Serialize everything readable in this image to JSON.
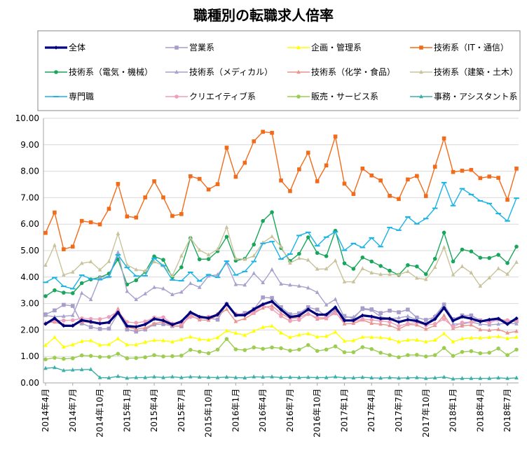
{
  "chart_data": {
    "type": "line",
    "title": "職種別の転職求人倍率",
    "ylim": [
      0,
      10
    ],
    "yticks": [
      "0.00",
      "1.00",
      "2.00",
      "3.00",
      "4.00",
      "5.00",
      "6.00",
      "7.00",
      "8.00",
      "9.00",
      "10.00"
    ],
    "grid": "horizontal",
    "legend_position": "top",
    "x": [
      "2014年4月",
      "2014年5月",
      "2014年6月",
      "2014年7月",
      "2014年8月",
      "2014年9月",
      "2014年10月",
      "2014年11月",
      "2014年12月",
      "2015年1月",
      "2015年2月",
      "2015年3月",
      "2015年4月",
      "2015年5月",
      "2015年6月",
      "2015年7月",
      "2015年8月",
      "2015年9月",
      "2015年10月",
      "2015年11月",
      "2015年12月",
      "2016年1月",
      "2016年2月",
      "2016年3月",
      "2016年4月",
      "2016年5月",
      "2016年6月",
      "2016年7月",
      "2016年8月",
      "2016年9月",
      "2016年10月",
      "2016年11月",
      "2016年12月",
      "2017年1月",
      "2017年2月",
      "2017年3月",
      "2017年4月",
      "2017年5月",
      "2017年6月",
      "2017年7月",
      "2017年8月",
      "2017年9月",
      "2017年10月",
      "2017年11月",
      "2017年12月",
      "2018年1月",
      "2018年2月",
      "2018年3月",
      "2018年4月",
      "2018年5月",
      "2018年6月",
      "2018年7月",
      "2018年8月"
    ],
    "xtick_labels": [
      "2014年4月",
      "2014年7月",
      "2014年10月",
      "2015年1月",
      "2015年4月",
      "2015年7月",
      "2015年10月",
      "2016年1月",
      "2016年4月",
      "2016年7月",
      "2016年10月",
      "2017年1月",
      "2017年4月",
      "2017年7月",
      "2017年10月",
      "2018年1月",
      "2018年4月",
      "2018年7月"
    ],
    "series": [
      {
        "name": "全体",
        "color": "#00007f",
        "marker": "diamond",
        "values": [
          2.23,
          2.44,
          2.16,
          2.16,
          2.37,
          2.31,
          2.24,
          2.29,
          2.67,
          2.15,
          2.12,
          2.21,
          2.42,
          2.36,
          2.2,
          2.32,
          2.67,
          2.5,
          2.45,
          2.58,
          2.99,
          2.56,
          2.56,
          2.78,
          2.97,
          3.08,
          2.77,
          2.49,
          2.54,
          2.78,
          2.58,
          2.58,
          2.86,
          2.36,
          2.36,
          2.55,
          2.51,
          2.43,
          2.43,
          2.3,
          2.39,
          2.34,
          2.22,
          2.41,
          2.84,
          2.35,
          2.5,
          2.43,
          2.32,
          2.39,
          2.43,
          2.22,
          2.44
        ]
      },
      {
        "name": "営業系",
        "color": "#a89ccb",
        "marker": "square",
        "values": [
          2.59,
          2.74,
          2.95,
          2.91,
          2.25,
          2.11,
          2.04,
          2.05,
          2.63,
          2.02,
          1.94,
          2.02,
          2.21,
          2.22,
          2.15,
          2.14,
          2.62,
          2.46,
          2.45,
          2.39,
          2.98,
          2.56,
          2.64,
          2.79,
          3.23,
          3.21,
          2.86,
          2.59,
          2.63,
          2.86,
          2.77,
          2.51,
          2.74,
          2.53,
          2.43,
          2.82,
          2.78,
          2.64,
          2.73,
          2.67,
          2.77,
          2.47,
          2.38,
          2.49,
          2.96,
          2.41,
          2.55,
          2.55,
          2.36,
          2.35,
          2.4,
          2.32,
          2.33
        ]
      },
      {
        "name": "企画・管理系",
        "color": "#ffff00",
        "marker": "triangle",
        "values": [
          1.42,
          1.72,
          1.36,
          1.44,
          1.57,
          1.6,
          1.43,
          1.45,
          1.67,
          1.44,
          1.44,
          1.54,
          1.61,
          1.6,
          1.55,
          1.64,
          1.74,
          1.65,
          1.62,
          1.71,
          1.97,
          1.88,
          1.8,
          1.96,
          2.1,
          2.15,
          1.89,
          1.72,
          1.81,
          1.86,
          1.74,
          1.76,
          1.92,
          1.58,
          1.6,
          1.73,
          1.72,
          1.71,
          1.67,
          1.55,
          1.62,
          1.62,
          1.55,
          1.62,
          1.86,
          1.55,
          1.67,
          1.7,
          1.7,
          1.72,
          1.75,
          1.68,
          1.73
        ]
      },
      {
        "name": "技術系（IT・通信）",
        "color": "#f26b1a",
        "marker": "square",
        "values": [
          5.67,
          6.44,
          5.05,
          5.15,
          6.12,
          6.07,
          5.99,
          6.58,
          7.52,
          6.29,
          6.25,
          7.01,
          7.62,
          7.01,
          6.31,
          6.38,
          7.81,
          7.71,
          7.31,
          7.51,
          8.89,
          7.79,
          8.32,
          9.13,
          9.49,
          9.45,
          7.65,
          7.25,
          8.07,
          8.7,
          7.62,
          8.22,
          9.31,
          7.53,
          7.14,
          8.1,
          7.84,
          7.65,
          7.07,
          6.95,
          7.69,
          7.82,
          7.06,
          8.17,
          9.24,
          7.97,
          8.02,
          8.05,
          7.74,
          7.8,
          7.75,
          6.92,
          8.1
        ]
      },
      {
        "name": "技術系（電気・機械）",
        "color": "#19a65b",
        "marker": "circle",
        "values": [
          3.28,
          3.5,
          3.41,
          3.39,
          3.77,
          3.91,
          3.99,
          4.13,
          4.67,
          3.72,
          3.88,
          4.2,
          4.78,
          4.65,
          3.99,
          4.37,
          5.47,
          4.67,
          4.68,
          4.98,
          5.52,
          4.62,
          4.69,
          5.23,
          6.12,
          6.45,
          5.1,
          4.61,
          4.88,
          5.5,
          4.91,
          4.79,
          5.75,
          4.52,
          4.31,
          4.74,
          4.59,
          4.42,
          4.24,
          4.08,
          4.45,
          4.4,
          4.11,
          4.69,
          5.68,
          4.59,
          5.04,
          4.97,
          4.73,
          4.72,
          4.84,
          4.53,
          5.15
        ]
      },
      {
        "name": "技術系（メディカル）",
        "color": "#a6a2cc",
        "marker": "triangle",
        "values": [
          2.55,
          2.5,
          2.52,
          2.55,
          3.39,
          3.15,
          3.99,
          4.02,
          4.93,
          3.46,
          3.15,
          3.37,
          3.61,
          3.56,
          3.34,
          3.43,
          3.76,
          3.61,
          4.04,
          4.09,
          4.53,
          3.72,
          3.7,
          4.14,
          3.79,
          4.28,
          3.74,
          3.7,
          3.66,
          3.59,
          3.42,
          2.95,
          3.16,
          2.48,
          2.49,
          2.78,
          2.75,
          2.5,
          2.43,
          2.46,
          2.52,
          2.38,
          2.2,
          2.53,
          2.97,
          2.23,
          2.22,
          2.3,
          2.22,
          2.19,
          2.22,
          2.26,
          2.23
        ]
      },
      {
        "name": "技術系（化学・食品）",
        "color": "#e8938c",
        "marker": "triangle",
        "values": [
          2.27,
          2.3,
          2.19,
          2.17,
          2.31,
          2.29,
          2.29,
          2.28,
          2.8,
          2.11,
          2.03,
          2.08,
          2.24,
          2.31,
          2.15,
          2.15,
          2.56,
          2.38,
          2.37,
          2.55,
          2.78,
          2.32,
          2.43,
          2.63,
          2.83,
          2.92,
          2.63,
          2.43,
          2.47,
          2.63,
          2.41,
          2.43,
          2.69,
          2.23,
          2.25,
          2.38,
          2.25,
          2.22,
          2.17,
          2.03,
          2.21,
          2.19,
          2.03,
          2.17,
          2.55,
          2.06,
          2.15,
          2.19,
          2.01,
          1.99,
          2.02,
          1.89,
          1.95
        ]
      },
      {
        "name": "技術系（建築・土木）",
        "color": "#c8c39a",
        "marker": "triangle",
        "values": [
          4.45,
          5.2,
          4.08,
          4.19,
          4.52,
          4.58,
          4.27,
          4.59,
          5.64,
          4.46,
          4.28,
          4.23,
          4.58,
          4.43,
          4.05,
          4.8,
          5.47,
          5.02,
          4.84,
          5.05,
          5.88,
          4.7,
          4.67,
          4.8,
          5.3,
          5.53,
          5.15,
          4.53,
          4.71,
          4.64,
          4.3,
          4.31,
          4.62,
          3.82,
          3.82,
          4.32,
          4.16,
          4.1,
          4.1,
          4.09,
          4.21,
          3.96,
          3.91,
          4.37,
          5.12,
          4.09,
          4.4,
          4.16,
          3.66,
          3.97,
          4.32,
          4.11,
          4.56
        ]
      },
      {
        "name": "専門職",
        "color": "#1ab3e6",
        "marker": "dash",
        "values": [
          3.8,
          3.98,
          3.65,
          3.56,
          4.07,
          3.93,
          3.9,
          4.01,
          4.84,
          4.36,
          4.04,
          4.05,
          4.71,
          4.43,
          3.89,
          3.86,
          4.18,
          3.85,
          4.09,
          3.99,
          4.6,
          4.08,
          4.21,
          4.59,
          5.27,
          5.34,
          4.68,
          4.87,
          5.57,
          5.69,
          5.18,
          5.51,
          5.71,
          5.01,
          5.27,
          5.12,
          5.48,
          5.15,
          5.87,
          5.77,
          6.27,
          6.01,
          6.21,
          6.6,
          7.57,
          6.7,
          7.34,
          7.12,
          6.88,
          6.78,
          6.4,
          6.12,
          6.98
        ]
      },
      {
        "name": "クリエイティブ系",
        "color": "#ee9fb9",
        "marker": "circle",
        "values": [
          2.24,
          2.35,
          2.36,
          2.37,
          2.44,
          2.42,
          2.41,
          2.49,
          2.71,
          2.3,
          2.27,
          2.32,
          2.47,
          2.48,
          2.24,
          2.23,
          2.49,
          2.44,
          2.5,
          2.6,
          2.94,
          2.61,
          2.58,
          2.65,
          2.93,
          2.79,
          2.52,
          2.34,
          2.38,
          2.6,
          2.47,
          2.46,
          2.63,
          2.35,
          2.33,
          2.41,
          2.38,
          2.34,
          2.3,
          2.15,
          2.24,
          2.28,
          2.18,
          2.23,
          2.41,
          2.12,
          2.28,
          2.3,
          2.35,
          2.27,
          2.4,
          2.37,
          2.35
        ]
      },
      {
        "name": "販売・サービス系",
        "color": "#9ccd50",
        "marker": "circle",
        "values": [
          0.89,
          0.95,
          0.91,
          0.93,
          1.04,
          1.02,
          0.98,
          0.98,
          1.1,
          0.93,
          0.94,
          0.97,
          1.05,
          1.0,
          1.01,
          1.03,
          1.25,
          1.18,
          1.12,
          1.26,
          1.66,
          1.27,
          1.24,
          1.34,
          1.29,
          1.34,
          1.31,
          1.22,
          1.26,
          1.43,
          1.21,
          1.26,
          1.38,
          1.16,
          1.16,
          1.35,
          1.28,
          1.14,
          1.05,
          0.97,
          1.05,
          1.06,
          1.0,
          1.05,
          1.32,
          1.02,
          1.17,
          1.2,
          1.12,
          1.14,
          1.3,
          1.05,
          1.26
        ]
      },
      {
        "name": "事務・アシスタント系",
        "color": "#3aaea8",
        "marker": "triangle",
        "values": [
          0.55,
          0.58,
          0.47,
          0.49,
          0.5,
          0.51,
          0.2,
          0.19,
          0.25,
          0.18,
          0.2,
          0.2,
          0.23,
          0.2,
          0.23,
          0.2,
          0.23,
          0.22,
          0.21,
          0.2,
          0.22,
          0.2,
          0.19,
          0.23,
          0.22,
          0.23,
          0.2,
          0.21,
          0.2,
          0.21,
          0.2,
          0.2,
          0.23,
          0.19,
          0.19,
          0.21,
          0.19,
          0.18,
          0.2,
          0.18,
          0.19,
          0.2,
          0.17,
          0.19,
          0.22,
          0.15,
          0.17,
          0.17,
          0.17,
          0.17,
          0.19,
          0.17,
          0.19
        ]
      }
    ]
  }
}
